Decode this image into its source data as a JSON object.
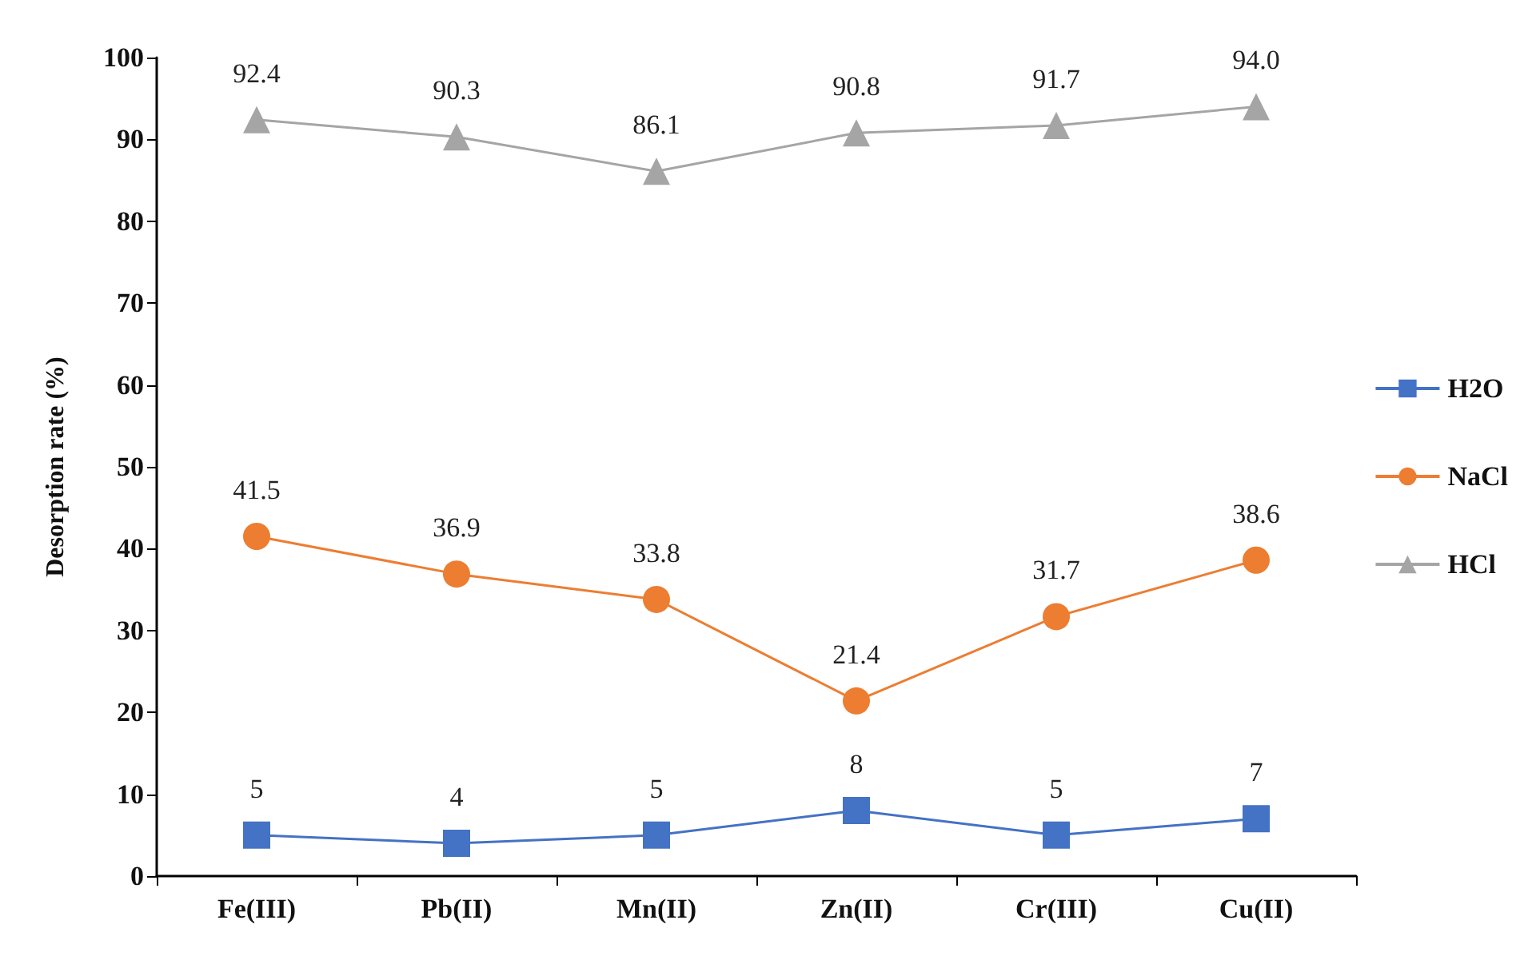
{
  "chart_data": {
    "type": "line",
    "ylabel": "Desorption rate (%)",
    "categories": [
      "Fe(III)",
      "Pb(II)",
      "Mn(II)",
      "Zn(II)",
      "Cr(III)",
      "Cu(II)"
    ],
    "ylim": [
      0,
      100
    ],
    "yticks": [
      0,
      10,
      20,
      30,
      40,
      50,
      60,
      70,
      80,
      90,
      100
    ],
    "grid": false,
    "legend": "right",
    "series": [
      {
        "name": "H2O",
        "color": "#4472c4",
        "marker": "square",
        "values": [
          5,
          4,
          5,
          8,
          5,
          7
        ],
        "value_labels": [
          "5",
          "4",
          "5",
          "8",
          "5",
          "7"
        ]
      },
      {
        "name": "NaCl",
        "color": "#ed7d31",
        "marker": "circle",
        "values": [
          41.5,
          36.9,
          33.8,
          21.4,
          31.7,
          38.6
        ],
        "value_labels": [
          "41.5",
          "36.9",
          "33.8",
          "21.4",
          "31.7",
          "38.6"
        ]
      },
      {
        "name": "HCl",
        "color": "#a5a5a5",
        "marker": "triangle",
        "values": [
          92.4,
          90.3,
          86.1,
          90.8,
          91.7,
          94.0
        ],
        "value_labels": [
          "92.4",
          "90.3",
          "86.1",
          "90.8",
          "91.7",
          "94.0"
        ]
      }
    ]
  }
}
